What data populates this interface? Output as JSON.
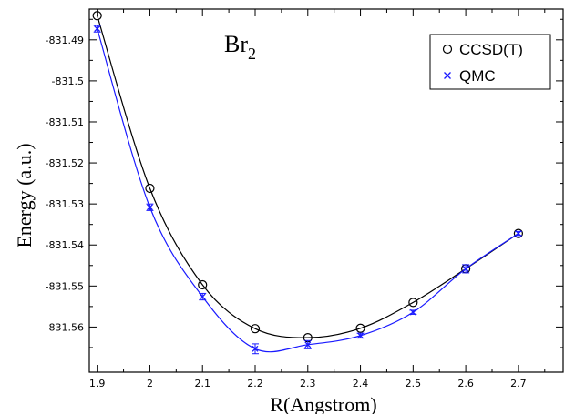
{
  "chart_data": {
    "type": "line",
    "title": {
      "main": "Br",
      "sub": "2"
    },
    "xlabel": "R(Angstrom)",
    "ylabel": "Energy (a.u.)",
    "xlim": [
      1.885,
      2.785
    ],
    "ylim": [
      -831.571,
      -831.4825
    ],
    "xticks": [
      1.9,
      2.0,
      2.1,
      2.2,
      2.3,
      2.4,
      2.5,
      2.6,
      2.7
    ],
    "xtick_labels": [
      "1.9",
      "2",
      "2.1",
      "2.2",
      "2.3",
      "2.4",
      "2.5",
      "2.6",
      "2.7"
    ],
    "yticks": [
      -831.49,
      -831.5,
      -831.51,
      -831.52,
      -831.53,
      -831.54,
      -831.55,
      -831.56
    ],
    "ytick_labels": [
      "-831.49",
      "-831.5",
      "-831.51",
      "-831.52",
      "-831.53",
      "-831.54",
      "-831.55",
      "-831.56"
    ],
    "grid": false,
    "legend_position": "top-right",
    "series": [
      {
        "name": "CCSD(T)",
        "marker": "circle",
        "color": "#000000",
        "x": [
          1.9,
          2.0,
          2.1,
          2.2,
          2.3,
          2.4,
          2.5,
          2.6,
          2.7
        ],
        "y": [
          -831.4841,
          -831.5262,
          -831.5497,
          -831.5604,
          -831.5626,
          -831.5603,
          -831.554,
          -831.5458,
          -831.5372
        ]
      },
      {
        "name": "QMC",
        "marker": "x",
        "color": "#1a1aff",
        "x": [
          1.9,
          2.0,
          2.1,
          2.2,
          2.3,
          2.4,
          2.5,
          2.6,
          2.7
        ],
        "y": [
          -831.4873,
          -831.5308,
          -831.5526,
          -831.5653,
          -831.5643,
          -831.5621,
          -831.5564,
          -831.5458,
          -831.5372
        ],
        "err": [
          0.0008,
          0.0008,
          0.0008,
          0.0012,
          0.001,
          0.0006,
          0.0005,
          0.001,
          0.0005
        ]
      }
    ]
  }
}
